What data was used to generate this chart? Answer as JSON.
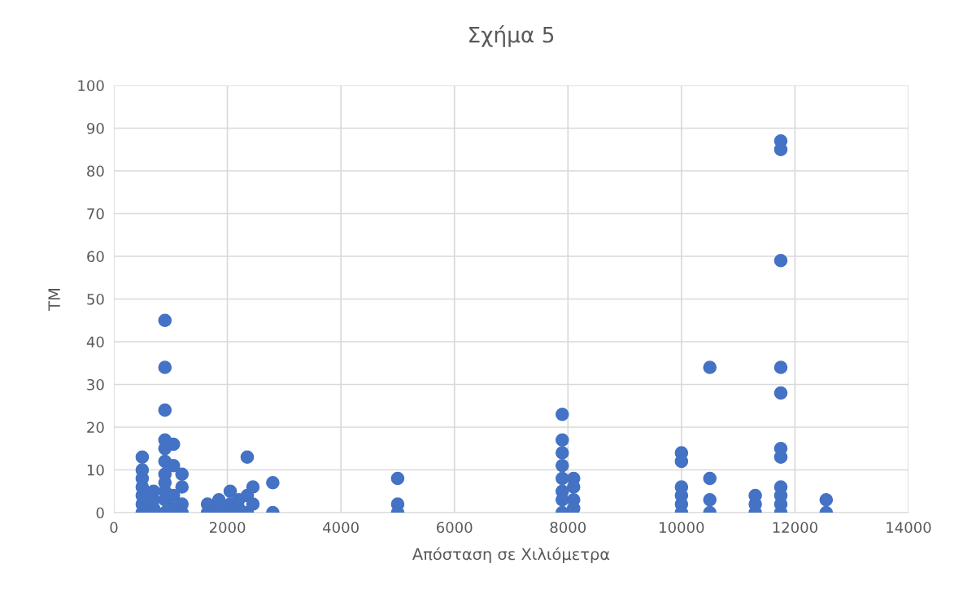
{
  "chart_data": {
    "type": "scatter",
    "title": "Σχήμα 5",
    "xlabel": "Απόσταση σε Χιλιόμετρα",
    "ylabel": "TM",
    "xlim": [
      0,
      14000
    ],
    "xticks": [
      0,
      2000,
      4000,
      6000,
      8000,
      10000,
      12000,
      14000
    ],
    "ylim": [
      0,
      100
    ],
    "yticks": [
      0,
      10,
      20,
      30,
      40,
      50,
      60,
      70,
      80,
      90,
      100
    ],
    "grid": true,
    "marker": "circle",
    "legend": false,
    "series": [
      {
        "color": "#4472c4",
        "x": [
          500,
          500,
          500,
          500,
          500,
          500,
          500,
          700,
          700,
          700,
          900,
          900,
          900,
          900,
          900,
          900,
          900,
          900,
          900,
          900,
          900,
          1050,
          1050,
          1050,
          1050,
          1200,
          1200,
          1200,
          1200,
          1650,
          1650,
          1850,
          1850,
          2050,
          2050,
          2050,
          2200,
          2200,
          2350,
          2350,
          2350,
          2450,
          2450,
          2800,
          2800,
          5000,
          5000,
          5000,
          7900,
          7900,
          7900,
          7900,
          7900,
          7900,
          7900,
          7900,
          8100,
          8100,
          8100,
          8100,
          10000,
          10000,
          10000,
          10000,
          10000,
          10000,
          10500,
          10500,
          10500,
          10500,
          11300,
          11300,
          11300,
          11750,
          11750,
          11750,
          11750,
          11750,
          11750,
          11750,
          11750,
          11750,
          11750,
          11750,
          12550,
          12550
        ],
        "values": [
          0,
          2,
          4,
          6,
          8,
          10,
          13,
          1,
          3,
          5,
          45,
          34,
          24,
          17,
          15,
          12,
          9,
          7,
          5,
          3,
          0,
          16,
          11,
          4,
          1,
          9,
          6,
          2,
          0,
          0,
          2,
          1,
          3,
          0,
          2,
          5,
          1,
          3,
          13,
          0,
          4,
          6,
          2,
          7,
          0,
          8,
          2,
          0,
          23,
          17,
          14,
          11,
          8,
          5,
          3,
          0,
          8,
          6,
          3,
          1,
          14,
          12,
          6,
          4,
          2,
          0,
          34,
          8,
          3,
          0,
          4,
          2,
          0,
          87,
          85,
          59,
          34,
          28,
          15,
          13,
          6,
          4,
          2,
          0,
          3,
          0
        ]
      }
    ]
  }
}
